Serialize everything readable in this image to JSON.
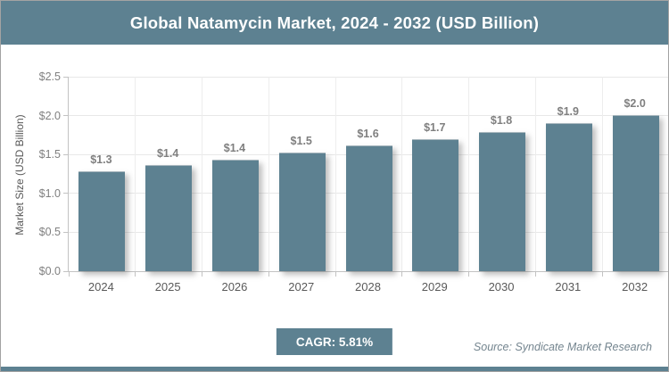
{
  "header": {
    "title": "Global Natamycin Market, 2024 - 2032 (USD Billion)"
  },
  "chart_data": {
    "type": "bar",
    "title": "Global Natamycin Market, 2024 - 2032 (USD Billion)",
    "categories": [
      "2024",
      "2025",
      "2026",
      "2027",
      "2028",
      "2029",
      "2030",
      "2031",
      "2032"
    ],
    "values": [
      1.27,
      1.35,
      1.42,
      1.51,
      1.6,
      1.69,
      1.78,
      1.89,
      2.0
    ],
    "bar_labels": [
      "$1.3",
      "$1.4",
      "$1.4",
      "$1.5",
      "$1.6",
      "$1.7",
      "$1.8",
      "$1.9",
      "$2.0"
    ],
    "xlabel": "",
    "ylabel": "Market Size (USD Billion)",
    "ylim": [
      0,
      2.5
    ],
    "ytick_step": 0.5,
    "ytick_labels": [
      "$0.0",
      "$0.5",
      "$1.0",
      "$1.5",
      "$2.0",
      "$2.5"
    ],
    "grid": true,
    "legend": false,
    "bar_color": "#5d8191"
  },
  "footer": {
    "cagr_label": "CAGR: 5.81%",
    "source": "Source: Syndicate Market Research"
  },
  "colors": {
    "accent_slate": "#5d8191",
    "label_gray": "#7f7f7f",
    "tick_gray": "#808080",
    "year_gray": "#595959",
    "gridline": "#e8e8e8",
    "source_text": "#74858f",
    "title_text": "#ffffff"
  }
}
